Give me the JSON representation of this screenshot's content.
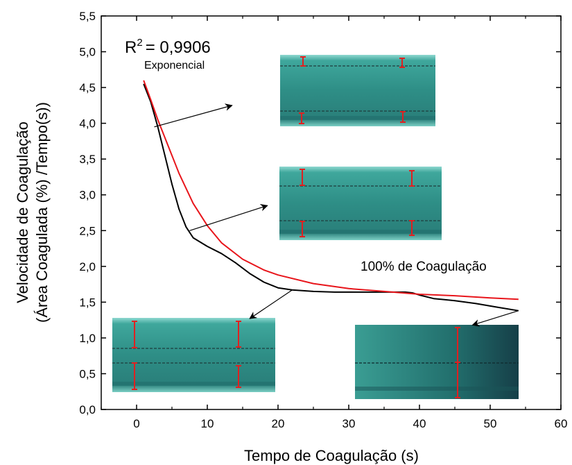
{
  "chart_data": {
    "type": "line",
    "xlabel": "Tempo de Coagulação (s)",
    "ylabel_line1": "Velocidade de Coagulação",
    "ylabel_line2": "(Área Coagulada (%) /Tempo(s))",
    "xlim": [
      -5,
      60
    ],
    "ylim": [
      0.0,
      5.5
    ],
    "xticks": [
      "0",
      "10",
      "20",
      "30",
      "40",
      "50",
      "60"
    ],
    "yticks": [
      "0,0",
      "0,5",
      "1,0",
      "1,5",
      "2,0",
      "2,5",
      "3,0",
      "3,5",
      "4,0",
      "4,5",
      "5,0",
      "5,5"
    ],
    "grid": false,
    "series": [
      {
        "color": "#000000",
        "x": [
          1,
          2,
          3,
          4,
          5,
          6,
          7,
          8,
          10,
          12,
          14,
          16,
          18,
          20,
          22,
          25,
          28,
          30,
          33,
          36,
          38,
          39,
          40,
          42,
          45,
          48,
          51,
          54
        ],
        "y": [
          4.55,
          4.3,
          3.95,
          3.55,
          3.15,
          2.8,
          2.55,
          2.4,
          2.28,
          2.18,
          2.05,
          1.9,
          1.78,
          1.7,
          1.67,
          1.65,
          1.64,
          1.64,
          1.64,
          1.64,
          1.64,
          1.63,
          1.6,
          1.55,
          1.52,
          1.48,
          1.43,
          1.38
        ]
      },
      {
        "color": "#e8151b",
        "x": [
          1,
          2,
          3,
          4,
          5,
          6,
          8,
          10,
          12,
          15,
          18,
          20,
          25,
          30,
          35,
          40,
          45,
          50,
          54
        ],
        "y": [
          4.6,
          4.33,
          4.05,
          3.8,
          3.55,
          3.3,
          2.88,
          2.57,
          2.33,
          2.1,
          1.95,
          1.88,
          1.76,
          1.69,
          1.65,
          1.61,
          1.59,
          1.56,
          1.54
        ]
      }
    ],
    "annotations": {
      "r2_base": "R",
      "r2_sup": "2",
      "r2_value": "= 0,9906",
      "fit_label": "Exponencial",
      "coag_label": "100% de Coagulação"
    },
    "insets": [
      {
        "name": "inset-top-right",
        "arrow_from": [
          2.5,
          3.95
        ],
        "arrow_to": [
          13.5,
          4.25
        ]
      },
      {
        "name": "inset-middle-right",
        "arrow_from": [
          7.5,
          2.5
        ],
        "arrow_to": [
          18.5,
          2.85
        ]
      },
      {
        "name": "inset-bottom-left",
        "arrow_from": [
          22,
          1.67
        ],
        "arrow_to": [
          16,
          1.27
        ]
      },
      {
        "name": "inset-bottom-right",
        "arrow_from": [
          54,
          1.38
        ],
        "arrow_to": [
          47.5,
          1.18
        ]
      }
    ]
  }
}
